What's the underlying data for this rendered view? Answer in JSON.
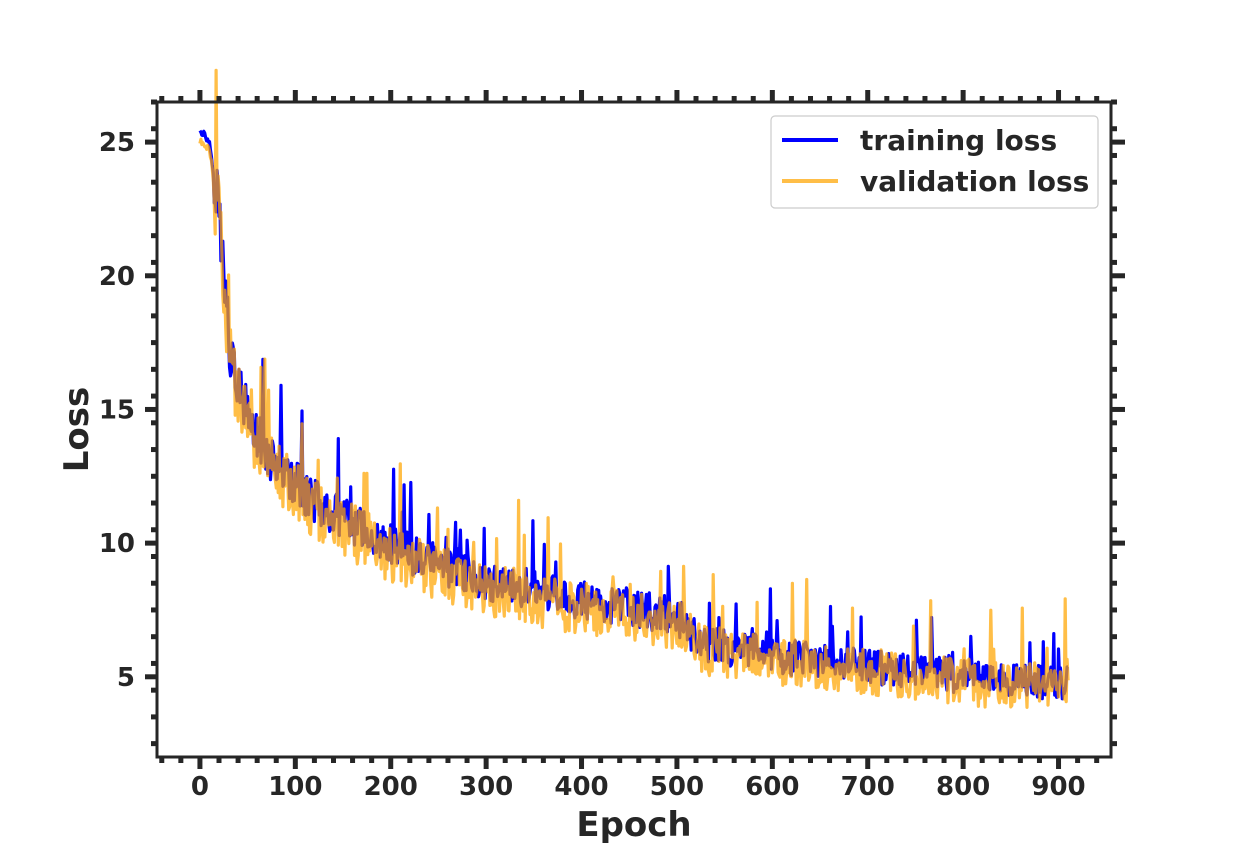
{
  "chart_data": {
    "type": "line",
    "title": "",
    "xlabel": "Epoch",
    "ylabel": "Loss",
    "xlim": [
      -45,
      955
    ],
    "ylim": [
      2,
      26.5
    ],
    "xticks": [
      0,
      100,
      200,
      300,
      400,
      500,
      600,
      700,
      800,
      900
    ],
    "xtick_labels": [
      "0",
      "100",
      "200",
      "300",
      "400",
      "500",
      "600",
      "700",
      "800",
      "900"
    ],
    "yticks": [
      5,
      10,
      15,
      20,
      25
    ],
    "ytick_labels": [
      "5",
      "10",
      "15",
      "20",
      "25"
    ],
    "grid": false,
    "legend_position": "top-right",
    "series": [
      {
        "name": "training loss",
        "color": "#0000ff",
        "opacity": 1.0,
        "x": [
          0,
          10,
          20,
          30,
          40,
          50,
          60,
          70,
          80,
          90,
          100,
          110,
          120,
          130,
          140,
          150,
          160,
          170,
          180,
          190,
          200,
          225,
          250,
          275,
          300,
          325,
          350,
          375,
          400,
          425,
          450,
          475,
          500,
          525,
          550,
          575,
          600,
          625,
          650,
          675,
          700,
          725,
          750,
          775,
          800,
          825,
          850,
          875,
          900,
          910
        ],
        "values": [
          25.5,
          25.0,
          22.5,
          17.5,
          15.8,
          14.8,
          14.0,
          13.4,
          12.9,
          12.5,
          12.2,
          11.9,
          11.6,
          11.3,
          11.1,
          10.9,
          10.7,
          10.5,
          10.3,
          10.1,
          9.9,
          9.5,
          9.2,
          8.9,
          8.6,
          8.4,
          8.2,
          8.0,
          7.9,
          7.7,
          7.6,
          7.4,
          7.3,
          6.2,
          6.1,
          6.0,
          5.8,
          5.7,
          5.6,
          5.5,
          5.4,
          5.3,
          5.2,
          5.1,
          5.0,
          5.0,
          4.9,
          4.8,
          4.8,
          4.8
        ],
        "noise": 0.85
      },
      {
        "name": "validation loss",
        "color": "#ffa500",
        "opacity": 0.72,
        "x": [
          0,
          10,
          20,
          30,
          40,
          50,
          60,
          70,
          80,
          90,
          100,
          110,
          120,
          130,
          140,
          150,
          160,
          170,
          180,
          190,
          200,
          225,
          250,
          275,
          300,
          325,
          350,
          375,
          400,
          425,
          450,
          475,
          500,
          525,
          550,
          575,
          600,
          625,
          650,
          675,
          700,
          725,
          750,
          775,
          800,
          825,
          850,
          875,
          900,
          910
        ],
        "values": [
          25.0,
          24.8,
          22.0,
          17.0,
          15.6,
          14.5,
          13.8,
          13.2,
          12.7,
          12.3,
          12.0,
          11.6,
          11.3,
          11.0,
          10.8,
          10.6,
          10.4,
          10.2,
          10.0,
          9.8,
          9.6,
          9.2,
          8.9,
          8.6,
          8.3,
          8.1,
          7.9,
          7.7,
          7.6,
          7.4,
          7.3,
          7.1,
          7.0,
          6.0,
          5.9,
          5.8,
          5.6,
          5.5,
          5.4,
          5.3,
          5.2,
          5.1,
          5.0,
          4.9,
          4.8,
          4.7,
          4.7,
          4.7,
          4.6,
          4.8
        ],
        "noise": 1.15
      }
    ]
  }
}
